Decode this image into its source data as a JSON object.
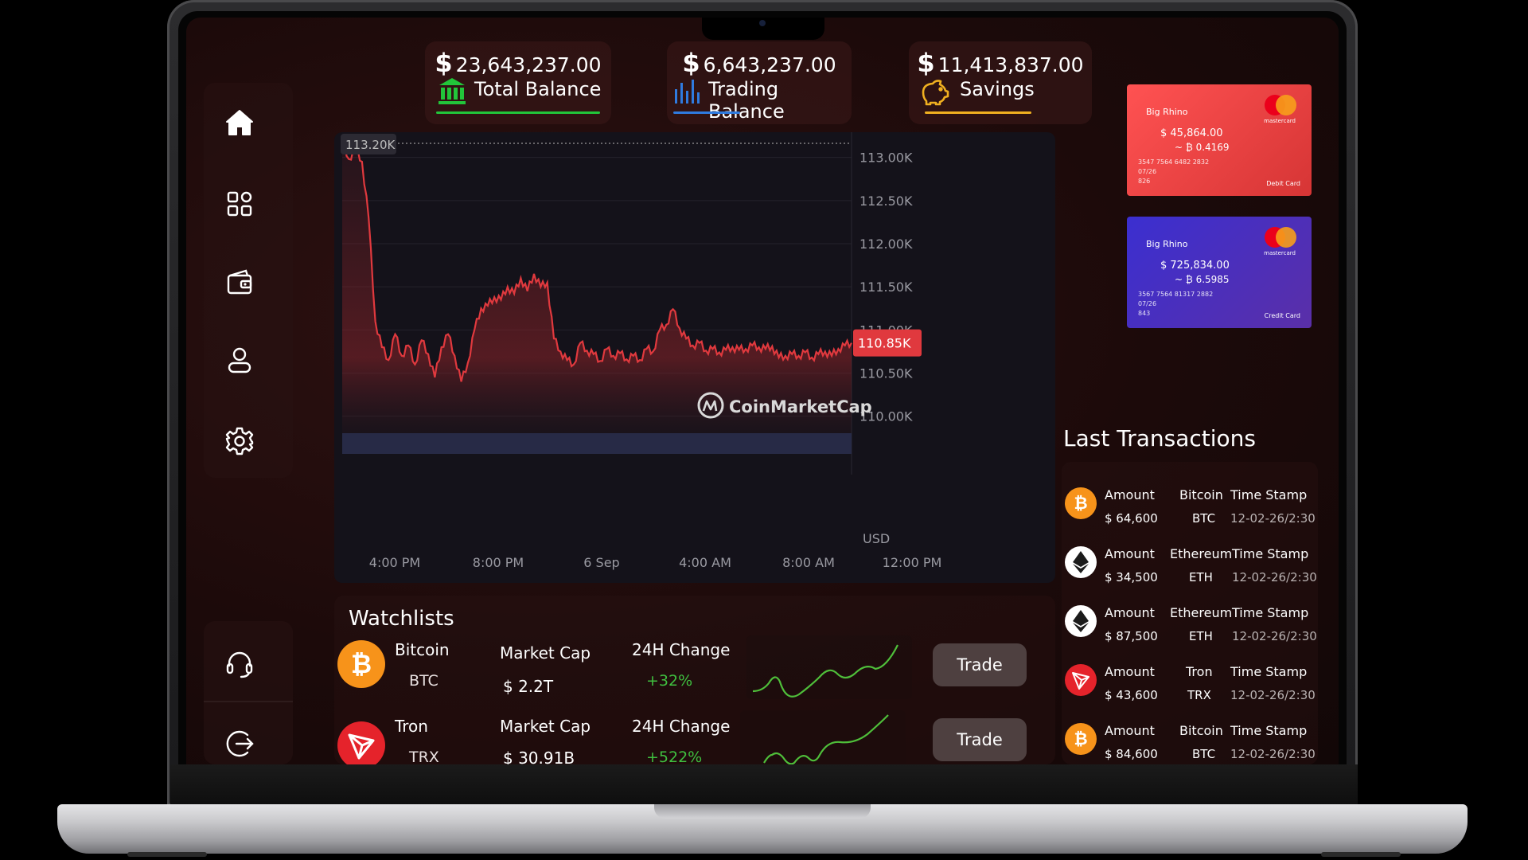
{
  "balances": [
    {
      "currency": "$",
      "amount": "23,643,237.00",
      "label": "Total Balance",
      "icon": "bank-icon",
      "color": "#22c53a"
    },
    {
      "currency": "$",
      "amount": "6,643,237.00",
      "label": "Trading Balance",
      "icon": "bar-chart-icon",
      "color": "#2f7be0"
    },
    {
      "currency": "$",
      "amount": "11,413,837.00",
      "label": "Savings",
      "icon": "piggy-bank-icon",
      "color": "#f0b020"
    }
  ],
  "sidebar": {
    "items": [
      {
        "name": "home-icon"
      },
      {
        "name": "apps-grid-icon"
      },
      {
        "name": "wallet-icon"
      },
      {
        "name": "user-icon"
      },
      {
        "name": "settings-gear-icon"
      }
    ],
    "bottom": [
      {
        "name": "headset-support-icon"
      },
      {
        "name": "logout-icon"
      }
    ]
  },
  "chart": {
    "watermark": "CoinMarketCap",
    "high_label": "113.20K",
    "last_label": "110.85K",
    "currency_label": "USD",
    "line_color": "#e0393e"
  },
  "chart_data": {
    "type": "line",
    "x_ticks": [
      "4:00 PM",
      "8:00 PM",
      "6 Sep",
      "4:00 AM",
      "8:00 AM",
      "12:00 PM"
    ],
    "y_ticks": [
      "113.00K",
      "112.50K",
      "112.00K",
      "111.50K",
      "111.00K",
      "110.50K",
      "110.00K"
    ],
    "ylim": [
      109.6,
      113.2
    ],
    "series": [
      {
        "values": [
          113.2,
          112.98,
          113.1,
          112.95,
          112.3,
          111.1,
          110.8,
          110.65,
          110.95,
          110.7,
          110.82,
          110.6,
          110.88,
          110.72,
          110.45,
          110.8,
          110.95,
          110.7,
          110.4,
          110.62,
          111.0,
          111.25,
          111.28,
          111.38,
          111.35,
          111.5,
          111.42,
          111.6,
          111.45,
          111.65,
          111.5,
          111.55,
          110.9,
          110.75,
          110.65,
          110.6,
          110.85,
          110.76,
          110.72,
          110.64,
          110.78,
          110.7,
          110.73,
          110.66,
          110.7,
          110.65,
          110.78,
          110.75,
          111.0,
          111.06,
          111.24,
          111.02,
          110.9,
          110.82,
          110.85,
          110.76,
          110.78,
          110.74,
          110.77,
          110.8,
          110.77,
          110.78,
          110.82,
          110.8,
          110.78,
          110.81,
          110.68,
          110.7,
          110.72,
          110.7,
          110.74,
          110.68,
          110.72,
          110.75,
          110.7,
          110.78,
          110.82,
          110.85
        ]
      }
    ],
    "volume_level": 0.55
  },
  "cards": [
    {
      "bank": "Big Rhino",
      "amount": "$  45,864.00",
      "btc": "~ ₿  0.4169",
      "number": "3547  7564  6482  2832",
      "expiry": "07/26",
      "cvv": "826",
      "brand": "mastercard",
      "type": "Debit Card",
      "color1": "#ff4a4a",
      "color2": "#d93434"
    },
    {
      "bank": "Big Rhino",
      "amount": "$  725,834.00",
      "btc": "~ ₿  6.5985",
      "number": "3567  7564  81317  2882",
      "expiry": "07/26",
      "cvv": "843",
      "brand": "mastercard",
      "type": "Credit Card",
      "color1": "#3b2fd0",
      "color2": "#5a2fa8"
    }
  ],
  "transactions": {
    "title": "Last Transactions",
    "items": [
      {
        "coin": "bitcoin-icon",
        "color": "#f7931a",
        "amount_label": "Amount",
        "amount": "$ 64,600",
        "coin_name": "Bitcoin",
        "symbol": "BTC",
        "ts_label": "Time Stamp",
        "timestamp": "12-02-26/2:30"
      },
      {
        "coin": "ethereum-icon",
        "color": "#ffffff",
        "amount_label": "Amount",
        "amount": "$ 34,500",
        "coin_name": "Ethereum",
        "symbol": "ETH",
        "ts_label": "Time Stamp",
        "timestamp": "12-02-26/2:30"
      },
      {
        "coin": "ethereum-icon",
        "color": "#ffffff",
        "amount_label": "Amount",
        "amount": "$ 87,500",
        "coin_name": "Ethereum",
        "symbol": "ETH",
        "ts_label": "Time Stamp",
        "timestamp": "12-02-26/2:30"
      },
      {
        "coin": "tron-icon",
        "color": "#e5232b",
        "amount_label": "Amount",
        "amount": "$ 43,600",
        "coin_name": "Tron",
        "symbol": "TRX",
        "ts_label": "Time Stamp",
        "timestamp": "12-02-26/2:30"
      },
      {
        "coin": "bitcoin-icon",
        "color": "#f7931a",
        "amount_label": "Amount",
        "amount": "$ 84,600",
        "coin_name": "Bitcoin",
        "symbol": "BTC",
        "ts_label": "Time Stamp",
        "timestamp": "12-02-26/2:30"
      }
    ]
  },
  "watchlist": {
    "title": "Watchlists",
    "items": [
      {
        "coin": "bitcoin-icon",
        "color": "#f7931a",
        "name": "Bitcoin",
        "symbol": "BTC",
        "cap_label": "Market Cap",
        "cap": "$ 2.2T",
        "change_label": "24H Change",
        "change": "+32%",
        "trade": "Trade"
      },
      {
        "coin": "tron-icon",
        "color": "#e5232b",
        "name": "Tron",
        "symbol": "TRX",
        "cap_label": "Market Cap",
        "cap": "$ 30.91B",
        "change_label": "24H Change",
        "change": "+522%",
        "trade": "Trade"
      }
    ]
  }
}
